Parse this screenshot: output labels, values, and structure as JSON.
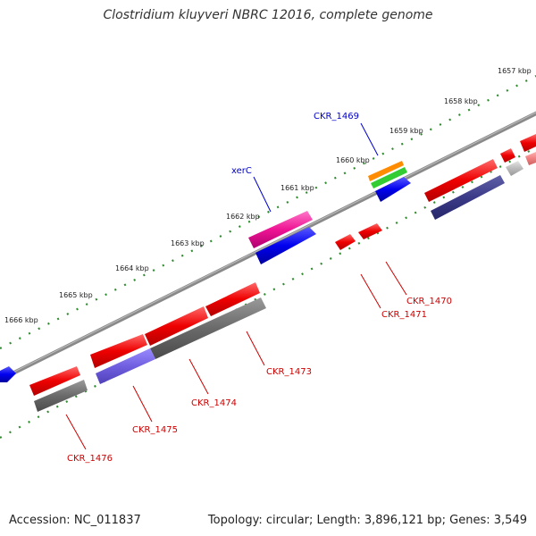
{
  "title": "Clostridium kluyveri NBRC 12016, complete genome",
  "footer": {
    "accession": "Accession: NC_011837",
    "summary": "Topology: circular; Length: 3,896,121 bp; Genes: 3,549"
  },
  "ticks": [
    "1657 kbp",
    "1658 kbp",
    "1659 kbp",
    "1660 kbp",
    "1661 kbp",
    "1662 kbp",
    "1663 kbp",
    "1664 kbp",
    "1665 kbp",
    "1666 kbp"
  ],
  "genes": [
    {
      "name": "CKR_1469",
      "color": "#0000cc"
    },
    {
      "name": "xerC",
      "color": "#0000cc"
    },
    {
      "name": "CKR_1470",
      "color": "#cc0000"
    },
    {
      "name": "CKR_1471",
      "color": "#cc0000"
    },
    {
      "name": "CKR_1473",
      "color": "#cc0000"
    },
    {
      "name": "CKR_1474",
      "color": "#cc0000"
    },
    {
      "name": "CKR_1475",
      "color": "#cc0000"
    },
    {
      "name": "CKR_1476",
      "color": "#cc0000"
    }
  ]
}
